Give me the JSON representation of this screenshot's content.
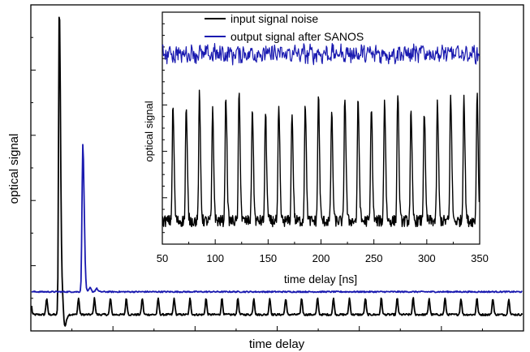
{
  "chart_data": [
    {
      "type": "line",
      "role": "main",
      "title": "",
      "xlabel": "time delay",
      "ylabel": "optical signal",
      "x_tick_labels": false,
      "y_tick_labels": false,
      "grid": false,
      "series": [
        {
          "name": "",
          "color": "#000000",
          "baseline_level": 0.05,
          "pulse_count": 30,
          "pulse_height": 0.05,
          "main_peak_level": 1.0
        },
        {
          "name": "",
          "color": "#1a1ab0",
          "baseline_level": 0.12,
          "main_peak_level": 0.57
        }
      ]
    },
    {
      "type": "line",
      "role": "inset",
      "title": "",
      "xlabel": "time delay [ns]",
      "ylabel": "optical signal",
      "xlim": [
        50,
        350
      ],
      "x_ticks": [
        50,
        100,
        150,
        200,
        250,
        300,
        350
      ],
      "legend": "top",
      "grid": false,
      "series": [
        {
          "name": "input signal noise",
          "color": "#000000",
          "pulse_period_ns": 12.5,
          "first_pulse_ns": 60,
          "baseline_level": 0.1,
          "pulse_peak_level": 0.62
        },
        {
          "name": "output signal after SANOS",
          "color": "#1a1ab0",
          "mean_level": 0.82,
          "noise_amplitude": 0.03
        }
      ]
    }
  ]
}
